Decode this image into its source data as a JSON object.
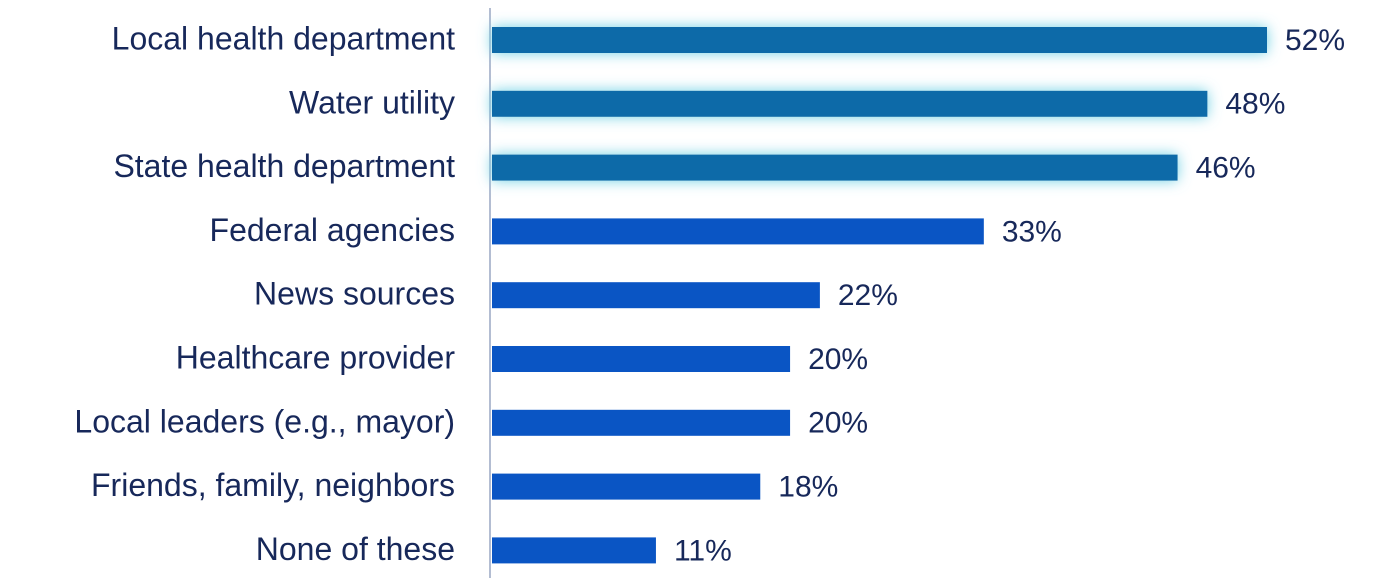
{
  "chart_data": {
    "type": "bar",
    "orientation": "horizontal",
    "categories": [
      "Local health department",
      "Water utility",
      "State health department",
      "Federal agencies",
      "News sources",
      "Healthcare provider",
      "Local leaders (e.g., mayor)",
      "Friends, family, neighbors",
      "None of these"
    ],
    "values": [
      52,
      48,
      46,
      33,
      22,
      20,
      20,
      18,
      11
    ],
    "value_labels": [
      "52%",
      "48%",
      "46%",
      "33%",
      "22%",
      "20%",
      "20%",
      "18%",
      "11%"
    ],
    "colors": [
      "#0b6aa8",
      "#0b6aa8",
      "#0b6aa8",
      "#0a55c4",
      "#0a55c4",
      "#0a55c4",
      "#0a55c4",
      "#0a55c4",
      "#0a55c4"
    ],
    "highlight": [
      true,
      true,
      true,
      false,
      false,
      false,
      false,
      false,
      false
    ],
    "glow_color": "#6fd0e4"
  }
}
